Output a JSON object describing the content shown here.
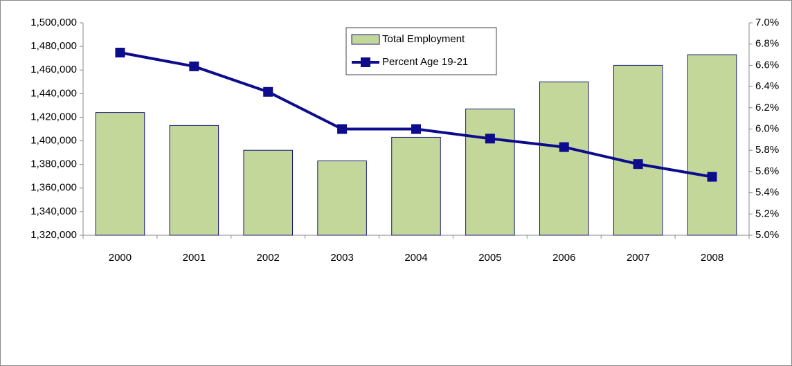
{
  "chart_data": {
    "type": "bar-line",
    "categories": [
      "2000",
      "2001",
      "2002",
      "2003",
      "2004",
      "2005",
      "2006",
      "2007",
      "2008"
    ],
    "series": [
      {
        "name": "Total Employment",
        "type": "bar",
        "color": "#c4d79b",
        "values": [
          1424000,
          1413000,
          1392000,
          1383000,
          1403000,
          1427000,
          1450000,
          1464000,
          1473000
        ]
      },
      {
        "name": "Percent Age 19-21",
        "type": "line",
        "axis": "y2",
        "color": "#0c0c8c",
        "values": [
          6.72,
          6.59,
          6.35,
          6.0,
          6.0,
          5.91,
          5.83,
          5.67,
          5.55
        ]
      }
    ],
    "ylim": [
      1320000,
      1500000
    ],
    "yticks": [
      {
        "value": 1320000,
        "label": "1,320,000"
      },
      {
        "value": 1340000,
        "label": "1,340,000"
      },
      {
        "value": 1360000,
        "label": "1,360,000"
      },
      {
        "value": 1380000,
        "label": "1,380,000"
      },
      {
        "value": 1400000,
        "label": "1,400,000"
      },
      {
        "value": 1420000,
        "label": "1,420,000"
      },
      {
        "value": 1440000,
        "label": "1,440,000"
      },
      {
        "value": 1460000,
        "label": "1,460,000"
      },
      {
        "value": 1480000,
        "label": "1,480,000"
      },
      {
        "value": 1500000,
        "label": "1,500,000"
      }
    ],
    "y2lim": [
      5.0,
      7.0
    ],
    "y2ticks": [
      {
        "value": 5.0,
        "label": "5.0%"
      },
      {
        "value": 5.2,
        "label": "5.2%"
      },
      {
        "value": 5.4,
        "label": "5.4%"
      },
      {
        "value": 5.6,
        "label": "5.6%"
      },
      {
        "value": 5.8,
        "label": "5.8%"
      },
      {
        "value": 6.0,
        "label": "6.0%"
      },
      {
        "value": 6.2,
        "label": "6.2%"
      },
      {
        "value": 6.4,
        "label": "6.4%"
      },
      {
        "value": 6.6,
        "label": "6.6%"
      },
      {
        "value": 6.8,
        "label": "6.8%"
      },
      {
        "value": 7.0,
        "label": "7.0%"
      }
    ],
    "grid": false,
    "legend": "top"
  }
}
